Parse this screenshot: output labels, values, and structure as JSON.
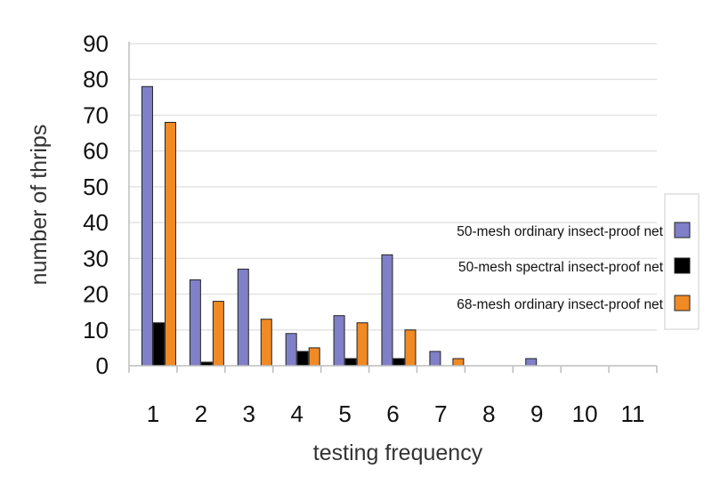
{
  "chart_data": {
    "type": "bar",
    "xlabel": "testing frequency",
    "ylabel": "number of thrips",
    "categories": [
      "1",
      "2",
      "3",
      "4",
      "5",
      "6",
      "7",
      "8",
      "9",
      "10",
      "11"
    ],
    "ylim": [
      0,
      90
    ],
    "yticks": [
      "0",
      "10",
      "20",
      "30",
      "40",
      "50",
      "60",
      "70",
      "80",
      "90"
    ],
    "grid": true,
    "legend_position": "right",
    "series": [
      {
        "name": "50-mesh ordinary insect-proof net",
        "color": "#8080c8",
        "values": [
          78,
          24,
          27,
          9,
          14,
          31,
          4,
          0,
          2,
          0,
          0
        ]
      },
      {
        "name": "50-mesh spectral insect-proof net",
        "color": "#000000",
        "values": [
          12,
          1,
          0,
          4,
          2,
          2,
          0,
          0,
          0,
          0,
          0
        ]
      },
      {
        "name": "68-mesh ordinary insect-proof net",
        "color": "#f08a24",
        "values": [
          68,
          18,
          13,
          5,
          12,
          10,
          2,
          0,
          0,
          0,
          0
        ]
      }
    ]
  }
}
